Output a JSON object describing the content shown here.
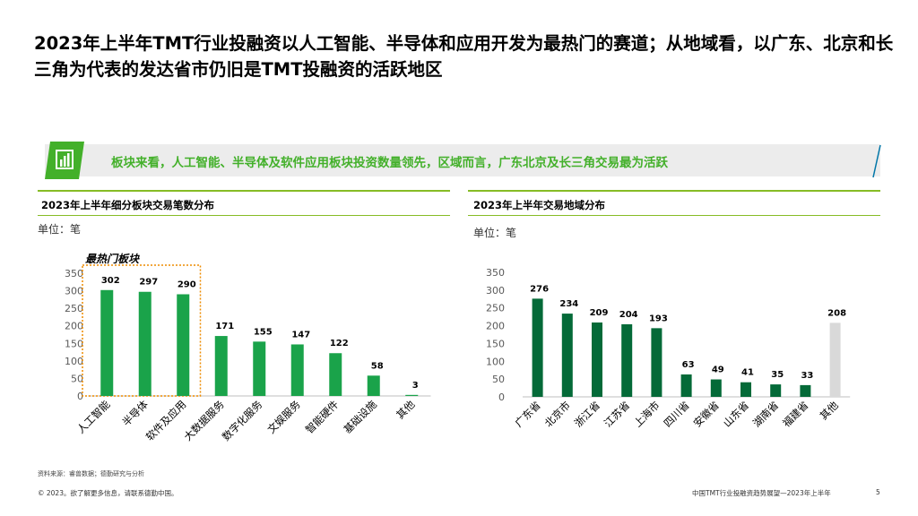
{
  "page": {
    "title": "2023年上半年TMT行业投融资以人工智能、半导体和应用开发为最热门的赛道；从地域看，以广东、北京和长三角为代表的发达省市仍旧是TMT投融资的活跃地区",
    "banner_text": "板块来看，人工智能、半导体及软件应用板块投资数量领先，区域而言，广东北京及长三角交易最为活跃",
    "banner_icon": "bar-chart-icon",
    "accent_color": "#86bc25",
    "banner_text_color": "#43b02a",
    "source": "资料来源：睿兽数据；德勤研究与分析",
    "copyright": "© 2023。欲了解更多信息，请联系德勤中国。",
    "report_name": "中国TMT行业投融资趋势展望—2023年上半年",
    "page_number": "5"
  },
  "chart_data": [
    {
      "type": "bar",
      "title": "2023年上半年细分板块交易笔数分布",
      "unit": "单位：笔",
      "highlight_label": "最热门板块",
      "highlight_indices": [
        0,
        1,
        2
      ],
      "categories": [
        "人工智能",
        "半导体",
        "软件及应用",
        "大数据服务",
        "数字化服务",
        "文娱服务",
        "智能硬件",
        "基础设施",
        "其他"
      ],
      "values": [
        302,
        297,
        290,
        171,
        155,
        147,
        122,
        58,
        3
      ],
      "ylim": [
        0,
        350
      ],
      "yticks": [
        0,
        50,
        100,
        150,
        200,
        250,
        300,
        350
      ],
      "bar_color": "#1aa34a",
      "grid": false
    },
    {
      "type": "bar",
      "title": "2023年上半年交易地域分布",
      "unit": "单位：笔",
      "categories": [
        "广东省",
        "北京市",
        "浙江省",
        "江苏省",
        "上海市",
        "四川省",
        "安徽省",
        "山东省",
        "湖南省",
        "福建省",
        "其他"
      ],
      "values": [
        276,
        234,
        209,
        204,
        193,
        63,
        49,
        41,
        35,
        33,
        208
      ],
      "ylim": [
        0,
        350
      ],
      "yticks": [
        0,
        50,
        100,
        150,
        200,
        250,
        300,
        350
      ],
      "bar_color": "#046a38",
      "other_color": "#d9d9d9",
      "grid": false
    }
  ]
}
